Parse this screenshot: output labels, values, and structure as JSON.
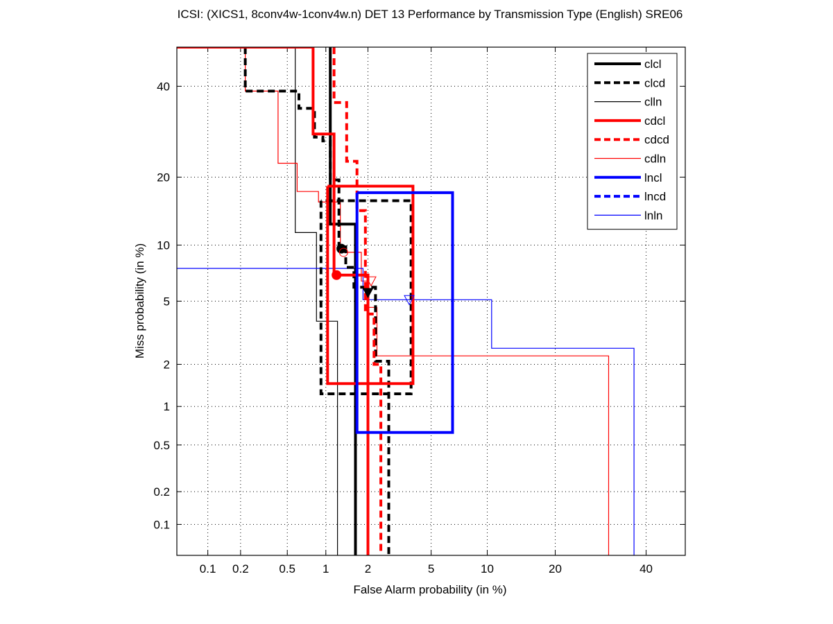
{
  "chart_data": {
    "type": "line",
    "scale": "probit",
    "title": "ICSI: (XICS1, 8conv4w-1conv4w.n) DET 13 Performance by Transmission Type (English) SRE06",
    "xlabel": "False Alarm probability (in %)",
    "ylabel": "Miss probability (in %)",
    "xlim": [
      0.05,
      50
    ],
    "ylim": [
      0.05,
      50
    ],
    "grid": true,
    "legend_position": "top-right",
    "x_ticks": [
      {
        "value": 0.1,
        "label": "0.1"
      },
      {
        "value": 0.2,
        "label": "0.2"
      },
      {
        "value": 0.5,
        "label": "0.5"
      },
      {
        "value": 1,
        "label": "1"
      },
      {
        "value": 2,
        "label": "2"
      },
      {
        "value": 5,
        "label": "5"
      },
      {
        "value": 10,
        "label": "10"
      },
      {
        "value": 20,
        "label": "20"
      },
      {
        "value": 40,
        "label": "40"
      }
    ],
    "y_ticks": [
      {
        "value": 0.1,
        "label": "0.1"
      },
      {
        "value": 0.2,
        "label": "0.2"
      },
      {
        "value": 0.5,
        "label": "0.5"
      },
      {
        "value": 1,
        "label": "1"
      },
      {
        "value": 2,
        "label": "2"
      },
      {
        "value": 5,
        "label": "5"
      },
      {
        "value": 10,
        "label": "10"
      },
      {
        "value": 20,
        "label": "20"
      },
      {
        "value": 40,
        "label": "40"
      }
    ],
    "series": [
      {
        "name": "clcl",
        "color": "#000000",
        "style": "solid",
        "weight": "thick",
        "points": [
          [
            1.08,
            50
          ],
          [
            1.08,
            12.6
          ],
          [
            1.64,
            12.6
          ],
          [
            1.64,
            0.05
          ]
        ],
        "marker": {
          "type": "circle-filled",
          "x": 1.3,
          "y": 9.6
        }
      },
      {
        "name": "clcd",
        "color": "#000000",
        "style": "dashed",
        "weight": "thick",
        "points": [
          [
            0.22,
            50
          ],
          [
            0.22,
            38.8
          ],
          [
            0.62,
            38.8
          ],
          [
            0.62,
            34.6
          ],
          [
            0.82,
            34.6
          ],
          [
            0.82,
            28.0
          ],
          [
            0.95,
            28.0
          ],
          [
            0.95,
            27.2
          ],
          [
            1.08,
            27.2
          ],
          [
            1.08,
            19.5
          ],
          [
            1.25,
            19.5
          ],
          [
            1.25,
            9.8
          ],
          [
            1.4,
            9.8
          ],
          [
            1.4,
            7.7
          ],
          [
            1.6,
            7.7
          ],
          [
            1.6,
            6.0
          ],
          [
            2.25,
            6.0
          ],
          [
            2.25,
            2.1
          ],
          [
            2.75,
            2.1
          ],
          [
            2.75,
            0.05
          ]
        ],
        "marker": {
          "type": "triangle-filled",
          "x": 2.0,
          "y": 5.6
        }
      },
      {
        "name": "clcd-box",
        "color": "#000000",
        "style": "dashed",
        "weight": "thick",
        "legend": false,
        "points": [
          [
            0.92,
            16.0
          ],
          [
            0.92,
            1.24
          ],
          [
            3.8,
            1.24
          ],
          [
            3.8,
            16.0
          ],
          [
            0.92,
            16.0
          ]
        ]
      },
      {
        "name": "clln",
        "color": "#000000",
        "style": "solid",
        "weight": "thin",
        "points": [
          [
            0.58,
            50
          ],
          [
            0.58,
            11.5
          ],
          [
            0.85,
            11.5
          ],
          [
            0.85,
            3.8
          ],
          [
            1.22,
            3.8
          ],
          [
            1.22,
            0.05
          ]
        ]
      },
      {
        "name": "cdcl",
        "color": "#ff0000",
        "style": "solid",
        "weight": "thick",
        "points": [
          [
            0.05,
            50
          ],
          [
            0.8,
            50
          ],
          [
            0.8,
            28.7
          ],
          [
            1.15,
            28.7
          ],
          [
            1.15,
            7.0
          ],
          [
            2.0,
            7.0
          ],
          [
            2.0,
            0.05
          ]
        ],
        "marker": {
          "type": "circle-filled",
          "x": 1.2,
          "y": 7.0
        }
      },
      {
        "name": "cdcl-box",
        "color": "#ff0000",
        "style": "solid",
        "weight": "thick",
        "legend": false,
        "points": [
          [
            1.03,
            18.4
          ],
          [
            1.03,
            1.47
          ],
          [
            3.9,
            1.47
          ],
          [
            3.9,
            18.4
          ],
          [
            1.03,
            18.4
          ]
        ]
      },
      {
        "name": "cdcd",
        "color": "#ff0000",
        "style": "dashed",
        "weight": "thick",
        "points": [
          [
            1.15,
            50
          ],
          [
            1.15,
            36.0
          ],
          [
            1.42,
            36.0
          ],
          [
            1.42,
            23.0
          ],
          [
            1.68,
            23.0
          ],
          [
            1.68,
            14.5
          ],
          [
            1.92,
            14.5
          ],
          [
            1.92,
            4.2
          ],
          [
            2.2,
            4.2
          ],
          [
            2.2,
            2.0
          ],
          [
            2.44,
            2.0
          ],
          [
            2.44,
            0.05
          ]
        ],
        "marker": {
          "type": "triangle-open",
          "x": 2.1,
          "y": 6.5
        }
      },
      {
        "name": "cdln",
        "color": "#ff0000",
        "style": "solid",
        "weight": "thin",
        "points": [
          [
            0.22,
            50
          ],
          [
            0.22,
            38.8
          ],
          [
            0.42,
            38.8
          ],
          [
            0.42,
            22.6
          ],
          [
            0.6,
            22.6
          ],
          [
            0.6,
            17.5
          ],
          [
            0.88,
            17.5
          ],
          [
            0.88,
            15.8
          ],
          [
            1.28,
            15.8
          ],
          [
            1.28,
            9.2
          ],
          [
            1.8,
            9.2
          ],
          [
            1.8,
            6.5
          ],
          [
            2.0,
            6.5
          ],
          [
            2.0,
            4.6
          ],
          [
            2.3,
            4.6
          ],
          [
            2.3,
            2.28
          ],
          [
            31,
            2.28
          ],
          [
            31,
            0.05
          ]
        ],
        "marker": {
          "type": "circle-open",
          "x": 1.35,
          "y": 9.2
        }
      },
      {
        "name": "lncl",
        "color": "#0000ff",
        "style": "solid",
        "weight": "thick",
        "points": [
          [
            1.68,
            17.3
          ],
          [
            1.68,
            0.63
          ],
          [
            6.6,
            0.63
          ],
          [
            6.6,
            17.3
          ],
          [
            1.68,
            17.3
          ]
        ]
      },
      {
        "name": "lncd",
        "color": "#0000ff",
        "style": "dashed",
        "weight": "thick",
        "points": []
      },
      {
        "name": "lnln",
        "color": "#0000ff",
        "style": "solid",
        "weight": "thin",
        "points": [
          [
            0.05,
            7.6
          ],
          [
            1.85,
            7.6
          ],
          [
            1.85,
            5.1
          ],
          [
            10.5,
            5.1
          ],
          [
            10.5,
            2.56
          ],
          [
            37,
            2.56
          ],
          [
            37,
            0.05
          ]
        ],
        "marker": {
          "type": "triangle-open",
          "x": 3.7,
          "y": 5.1
        }
      }
    ]
  }
}
